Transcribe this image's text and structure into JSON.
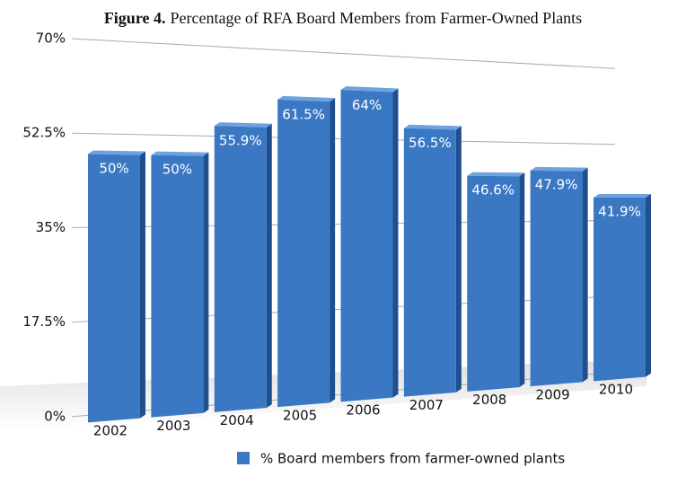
{
  "chart_data": {
    "type": "bar",
    "figure_label": "Figure 4.",
    "title": "Percentage of RFA Board Members from Farmer-Owned Plants",
    "categories": [
      "2002",
      "2003",
      "2004",
      "2005",
      "2006",
      "2007",
      "2008",
      "2009",
      "2010"
    ],
    "series": [
      {
        "name": "% Board members from farmer-owned plants",
        "color": "#3a78c4",
        "values": [
          50,
          50,
          55.9,
          61.5,
          64,
          56.5,
          46.6,
          47.9,
          41.9
        ],
        "value_labels": [
          "50%",
          "50%",
          "55.9%",
          "61.5%",
          "64%",
          "56.5%",
          "46.6%",
          "47.9%",
          "41.9%"
        ]
      }
    ],
    "ylim": [
      0,
      70
    ],
    "yticks": [
      {
        "value": 0,
        "label": "0%"
      },
      {
        "value": 17.5,
        "label": "17.5%"
      },
      {
        "value": 35,
        "label": "35%"
      },
      {
        "value": 52.5,
        "label": "52.5%"
      },
      {
        "value": 70,
        "label": "70%"
      }
    ],
    "grid": true
  }
}
